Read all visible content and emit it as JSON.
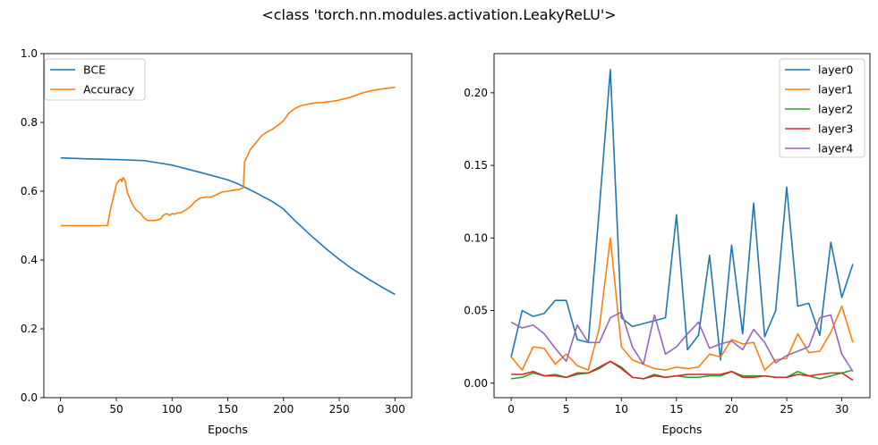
{
  "figure": {
    "suptitle": "<class 'torch.nn.modules.activation.LeakyReLU'>"
  },
  "chart_data": [
    {
      "type": "line",
      "xlabel": "Epochs",
      "ylabel": "",
      "xlim": [
        -15,
        315
      ],
      "ylim": [
        0.0,
        1.0
      ],
      "xticks": [
        0,
        50,
        100,
        150,
        200,
        250,
        300
      ],
      "xtick_labels": [
        "0",
        "50",
        "100",
        "150",
        "200",
        "250",
        "300"
      ],
      "yticks": [
        0.0,
        0.2,
        0.4,
        0.6,
        0.8,
        1.0
      ],
      "ytick_labels": [
        "0.0",
        "0.2",
        "0.4",
        "0.6",
        "0.8",
        "1.0"
      ],
      "grid": false,
      "legend_position": "upper-left",
      "series": [
        {
          "name": "BCE",
          "color": "#1f77b4",
          "x": [
            0,
            25,
            50,
            75,
            100,
            125,
            150,
            160,
            175,
            190,
            200,
            210,
            225,
            240,
            250,
            260,
            275,
            290,
            300
          ],
          "y": [
            0.697,
            0.694,
            0.692,
            0.689,
            0.676,
            0.655,
            0.633,
            0.62,
            0.596,
            0.57,
            0.548,
            0.515,
            0.47,
            0.428,
            0.402,
            0.378,
            0.347,
            0.318,
            0.3
          ]
        },
        {
          "name": "Accuracy",
          "color": "#ff7f0e",
          "x": [
            0,
            10,
            20,
            30,
            42,
            45,
            48,
            50,
            52,
            54,
            55,
            56,
            58,
            60,
            62,
            65,
            68,
            70,
            72,
            75,
            78,
            80,
            85,
            90,
            92,
            95,
            98,
            100,
            102,
            105,
            108,
            112,
            115,
            118,
            120,
            125,
            130,
            135,
            140,
            145,
            150,
            155,
            160,
            164,
            165,
            168,
            170,
            175,
            180,
            185,
            190,
            195,
            200,
            205,
            210,
            215,
            220,
            225,
            230,
            235,
            240,
            245,
            250,
            260,
            270,
            280,
            290,
            300
          ],
          "y": [
            0.5,
            0.5,
            0.5,
            0.5,
            0.5,
            0.55,
            0.59,
            0.62,
            0.63,
            0.635,
            0.628,
            0.64,
            0.63,
            0.595,
            0.58,
            0.558,
            0.545,
            0.54,
            0.535,
            0.522,
            0.515,
            0.515,
            0.515,
            0.52,
            0.53,
            0.535,
            0.53,
            0.535,
            0.533,
            0.537,
            0.538,
            0.545,
            0.552,
            0.56,
            0.568,
            0.58,
            0.583,
            0.583,
            0.59,
            0.598,
            0.6,
            0.603,
            0.605,
            0.61,
            0.685,
            0.705,
            0.72,
            0.74,
            0.76,
            0.772,
            0.78,
            0.792,
            0.805,
            0.828,
            0.84,
            0.848,
            0.852,
            0.855,
            0.857,
            0.858,
            0.86,
            0.862,
            0.865,
            0.873,
            0.885,
            0.893,
            0.898,
            0.902
          ]
        }
      ]
    },
    {
      "type": "line",
      "xlabel": "Epochs",
      "ylabel": "",
      "xlim": [
        -1.55,
        32.55
      ],
      "ylim": [
        -0.01,
        0.227
      ],
      "xticks": [
        0,
        5,
        10,
        15,
        20,
        25,
        30
      ],
      "xtick_labels": [
        "0",
        "5",
        "10",
        "15",
        "20",
        "25",
        "30"
      ],
      "yticks": [
        0.0,
        0.05,
        0.1,
        0.15,
        0.2
      ],
      "ytick_labels": [
        "0.00",
        "0.05",
        "0.10",
        "0.15",
        "0.20"
      ],
      "grid": false,
      "legend_position": "upper-right",
      "series": [
        {
          "name": "layer0",
          "color": "#1f77b4",
          "x": [
            0,
            1,
            2,
            3,
            4,
            5,
            6,
            7,
            8,
            9,
            10,
            11,
            12,
            13,
            14,
            15,
            16,
            17,
            18,
            19,
            20,
            21,
            22,
            23,
            24,
            25,
            26,
            27,
            28,
            29,
            30,
            31
          ],
          "y": [
            0.018,
            0.05,
            0.046,
            0.048,
            0.057,
            0.057,
            0.03,
            0.028,
            0.12,
            0.216,
            0.045,
            0.039,
            0.041,
            0.043,
            0.045,
            0.116,
            0.023,
            0.033,
            0.088,
            0.016,
            0.095,
            0.034,
            0.124,
            0.032,
            0.05,
            0.135,
            0.053,
            0.055,
            0.033,
            0.097,
            0.059,
            0.082
          ]
        },
        {
          "name": "layer1",
          "color": "#ff7f0e",
          "x": [
            0,
            1,
            2,
            3,
            4,
            5,
            6,
            7,
            8,
            9,
            10,
            11,
            12,
            13,
            14,
            15,
            16,
            17,
            18,
            19,
            20,
            21,
            22,
            23,
            24,
            25,
            26,
            27,
            28,
            29,
            30,
            31
          ],
          "y": [
            0.018,
            0.009,
            0.025,
            0.024,
            0.013,
            0.02,
            0.012,
            0.009,
            0.038,
            0.1,
            0.025,
            0.016,
            0.013,
            0.01,
            0.009,
            0.011,
            0.01,
            0.011,
            0.02,
            0.018,
            0.03,
            0.027,
            0.028,
            0.009,
            0.016,
            0.017,
            0.034,
            0.021,
            0.022,
            0.035,
            0.053,
            0.028
          ]
        },
        {
          "name": "layer2",
          "color": "#2ca02c",
          "x": [
            0,
            1,
            2,
            3,
            4,
            5,
            6,
            7,
            8,
            9,
            10,
            11,
            12,
            13,
            14,
            15,
            16,
            17,
            18,
            19,
            20,
            21,
            22,
            23,
            24,
            25,
            26,
            27,
            28,
            29,
            30,
            31
          ],
          "y": [
            0.003,
            0.004,
            0.007,
            0.005,
            0.006,
            0.004,
            0.006,
            0.007,
            0.01,
            0.015,
            0.011,
            0.004,
            0.003,
            0.006,
            0.004,
            0.005,
            0.004,
            0.004,
            0.005,
            0.005,
            0.008,
            0.005,
            0.005,
            0.005,
            0.004,
            0.004,
            0.008,
            0.005,
            0.003,
            0.005,
            0.007,
            0.009
          ]
        },
        {
          "name": "layer3",
          "color": "#d62728",
          "x": [
            0,
            1,
            2,
            3,
            4,
            5,
            6,
            7,
            8,
            9,
            10,
            11,
            12,
            13,
            14,
            15,
            16,
            17,
            18,
            19,
            20,
            21,
            22,
            23,
            24,
            25,
            26,
            27,
            28,
            29,
            30,
            31
          ],
          "y": [
            0.006,
            0.006,
            0.008,
            0.005,
            0.005,
            0.004,
            0.007,
            0.007,
            0.011,
            0.015,
            0.01,
            0.004,
            0.003,
            0.005,
            0.004,
            0.005,
            0.006,
            0.006,
            0.006,
            0.006,
            0.008,
            0.004,
            0.004,
            0.005,
            0.004,
            0.004,
            0.006,
            0.005,
            0.006,
            0.007,
            0.007,
            0.002
          ]
        },
        {
          "name": "layer4",
          "color": "#9467bd",
          "x": [
            0,
            1,
            2,
            3,
            4,
            5,
            6,
            7,
            8,
            9,
            10,
            11,
            12,
            13,
            14,
            15,
            16,
            17,
            18,
            19,
            20,
            21,
            22,
            23,
            24,
            25,
            26,
            27,
            28,
            29,
            30,
            31
          ],
          "y": [
            0.042,
            0.038,
            0.04,
            0.034,
            0.024,
            0.015,
            0.04,
            0.028,
            0.028,
            0.045,
            0.049,
            0.025,
            0.013,
            0.047,
            0.02,
            0.025,
            0.034,
            0.042,
            0.024,
            0.027,
            0.029,
            0.023,
            0.037,
            0.028,
            0.014,
            0.019,
            0.022,
            0.025,
            0.045,
            0.047,
            0.02,
            0.008
          ]
        }
      ]
    }
  ]
}
